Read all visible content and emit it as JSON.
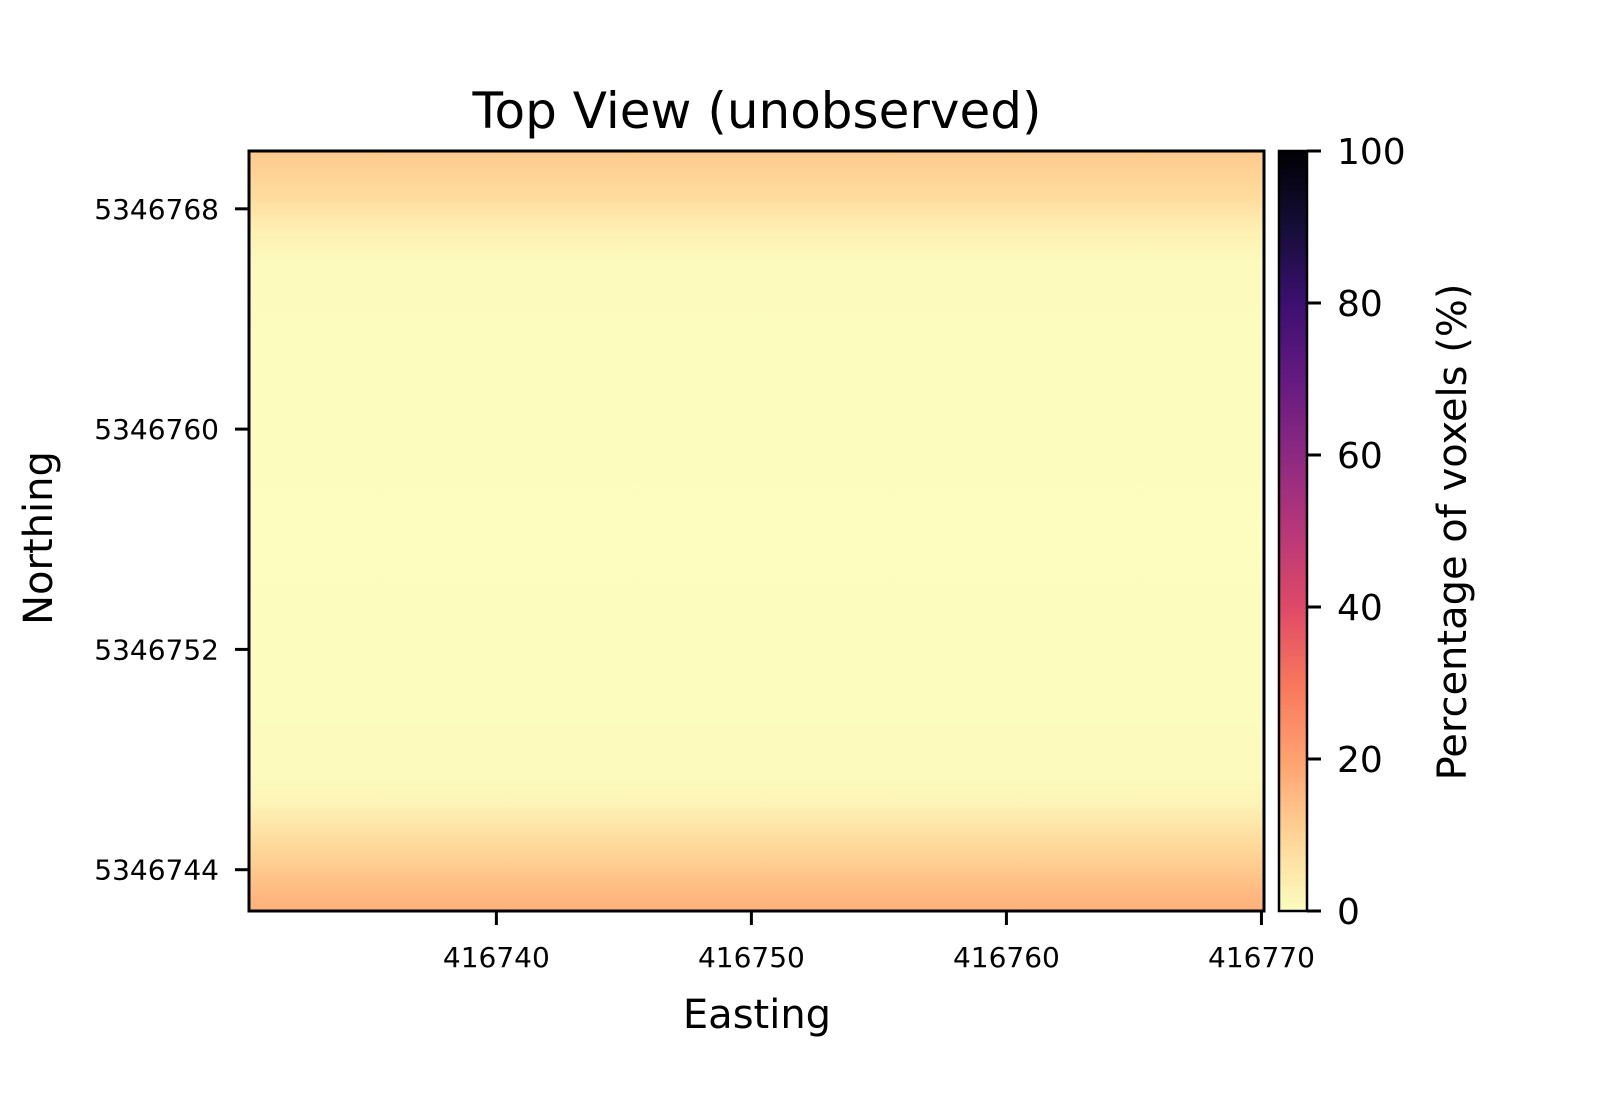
{
  "chart_data": {
    "type": "heatmap",
    "title": "Top View (unobserved)",
    "xlabel": "Easting",
    "ylabel": "Northing",
    "xlim": [
      416730.3,
      416770.1
    ],
    "ylim": [
      5346742.5,
      5346770.1
    ],
    "x_ticks": [
      416740,
      416750,
      416760,
      416770
    ],
    "y_ticks": [
      5346744,
      5346752,
      5346760,
      5346768
    ],
    "colormap": "magma_r",
    "colorbar": {
      "label": "Percentage of voxels (%)",
      "range": [
        0,
        100
      ],
      "ticks": [
        0,
        20,
        40,
        60,
        80,
        100
      ]
    },
    "northing_profile": [
      {
        "northing": 5346742.5,
        "value": 17
      },
      {
        "northing": 5346743.5,
        "value": 14
      },
      {
        "northing": 5346744.5,
        "value": 10
      },
      {
        "northing": 5346745.5,
        "value": 6
      },
      {
        "northing": 5346746.5,
        "value": 2
      },
      {
        "northing": 5346747.5,
        "value": 0.5
      },
      {
        "northing": 5346756.0,
        "value": 0
      },
      {
        "northing": 5346766.0,
        "value": 0.5
      },
      {
        "northing": 5346767.2,
        "value": 3
      },
      {
        "northing": 5346768.5,
        "value": 8
      },
      {
        "northing": 5346770.1,
        "value": 12
      }
    ]
  },
  "colors": {
    "cmap_stops": [
      {
        "v": 0,
        "c": "#fcfdbf"
      },
      {
        "v": 10,
        "c": "#fed395"
      },
      {
        "v": 20,
        "c": "#fea16e"
      },
      {
        "v": 30,
        "c": "#f8765c"
      },
      {
        "v": 40,
        "c": "#de4968"
      },
      {
        "v": 50,
        "c": "#b73779"
      },
      {
        "v": 60,
        "c": "#8c2981"
      },
      {
        "v": 70,
        "c": "#641a80"
      },
      {
        "v": 80,
        "c": "#3b0f70"
      },
      {
        "v": 90,
        "c": "#150e37"
      },
      {
        "v": 100,
        "c": "#000004"
      }
    ]
  }
}
